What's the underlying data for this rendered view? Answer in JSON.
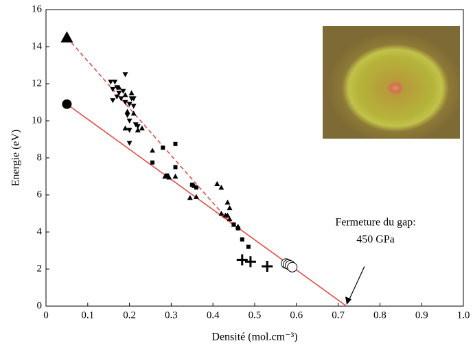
{
  "chart_data": {
    "type": "scatter",
    "xlabel": "Densité (mol.cm⁻³)",
    "ylabel": "Energie (eV)",
    "xlim": [
      0,
      1
    ],
    "ylim": [
      0,
      16
    ],
    "xticks": [
      0,
      0.1,
      0.2,
      0.3,
      0.4,
      0.5,
      0.6,
      0.7,
      0.8,
      0.9,
      {
        "value": 1,
        "label": "1.0"
      }
    ],
    "yticks": [
      0,
      2,
      4,
      6,
      8,
      10,
      12,
      14,
      16
    ],
    "series": [
      {
        "type": "line",
        "style": "solid",
        "color": "#e8403a",
        "x": [
          0.05,
          0.72
        ],
        "values": [
          10.9,
          0
        ]
      },
      {
        "type": "line",
        "style": "dashed",
        "color": "#e8403a",
        "x": [
          0.05,
          0.45
        ],
        "values": [
          14.5,
          4.3
        ]
      },
      {
        "marker": "triangle-up-large",
        "color": "#000000",
        "x": [
          0.05
        ],
        "values": [
          14.5
        ]
      },
      {
        "marker": "circle-large",
        "color": "#000000",
        "x": [
          0.05
        ],
        "values": [
          10.9
        ]
      },
      {
        "marker": "triangle-down",
        "color": "#000000",
        "x": [
          0.155,
          0.165,
          0.17,
          0.16,
          0.175,
          0.18,
          0.19,
          0.2,
          0.205,
          0.19,
          0.16,
          0.21,
          0.195,
          0.2,
          0.215,
          0.22,
          0.2,
          0.2,
          0.17,
          0.185,
          0.21
        ],
        "values": [
          12.1,
          12.1,
          11.8,
          11.7,
          11.5,
          11.2,
          11,
          10.9,
          11.2,
          12.5,
          11.1,
          10.8,
          10.3,
          10,
          9.8,
          9.7,
          8.8,
          9.5,
          11.3,
          11.6,
          11.2
        ]
      },
      {
        "marker": "triangle-up",
        "color": "#000000",
        "x": [
          0.175,
          0.19,
          0.205,
          0.195,
          0.21,
          0.19,
          0.22,
          0.23,
          0.255,
          0.285,
          0.295,
          0.31,
          0.345,
          0.36,
          0.355,
          0.41,
          0.42,
          0.42,
          0.435,
          0.44,
          0.43,
          0.44,
          0.45,
          0.46,
          0.435
        ],
        "values": [
          11.8,
          11.4,
          11.5,
          10.5,
          10.4,
          9.6,
          9.5,
          9.6,
          8.4,
          7,
          6.95,
          7,
          5.85,
          5.9,
          6.5,
          6.6,
          6.4,
          5,
          5.6,
          5.3,
          4.9,
          4.7,
          4.4,
          4.3,
          4.9
        ]
      },
      {
        "marker": "square",
        "color": "#000000",
        "x": [
          0.255,
          0.28,
          0.31,
          0.31,
          0.29,
          0.35,
          0.36,
          0.46,
          0.47,
          0.485,
          0.45
        ],
        "values": [
          7.75,
          8.55,
          8.75,
          7.5,
          7.05,
          6.55,
          6.4,
          4.2,
          3.6,
          3.2,
          4.4
        ]
      },
      {
        "marker": "plus",
        "color": "#000000",
        "x": [
          0.47,
          0.49,
          0.53
        ],
        "values": [
          2.5,
          2.4,
          2.15
        ]
      },
      {
        "marker": "circle-open",
        "color": "#000000",
        "x": [
          0.575,
          0.58,
          0.585,
          0.59
        ],
        "values": [
          2.3,
          2.25,
          2.2,
          2.1
        ]
      }
    ],
    "annotation": [
      "Fermeture du gap:",
      "450 GPa"
    ]
  }
}
